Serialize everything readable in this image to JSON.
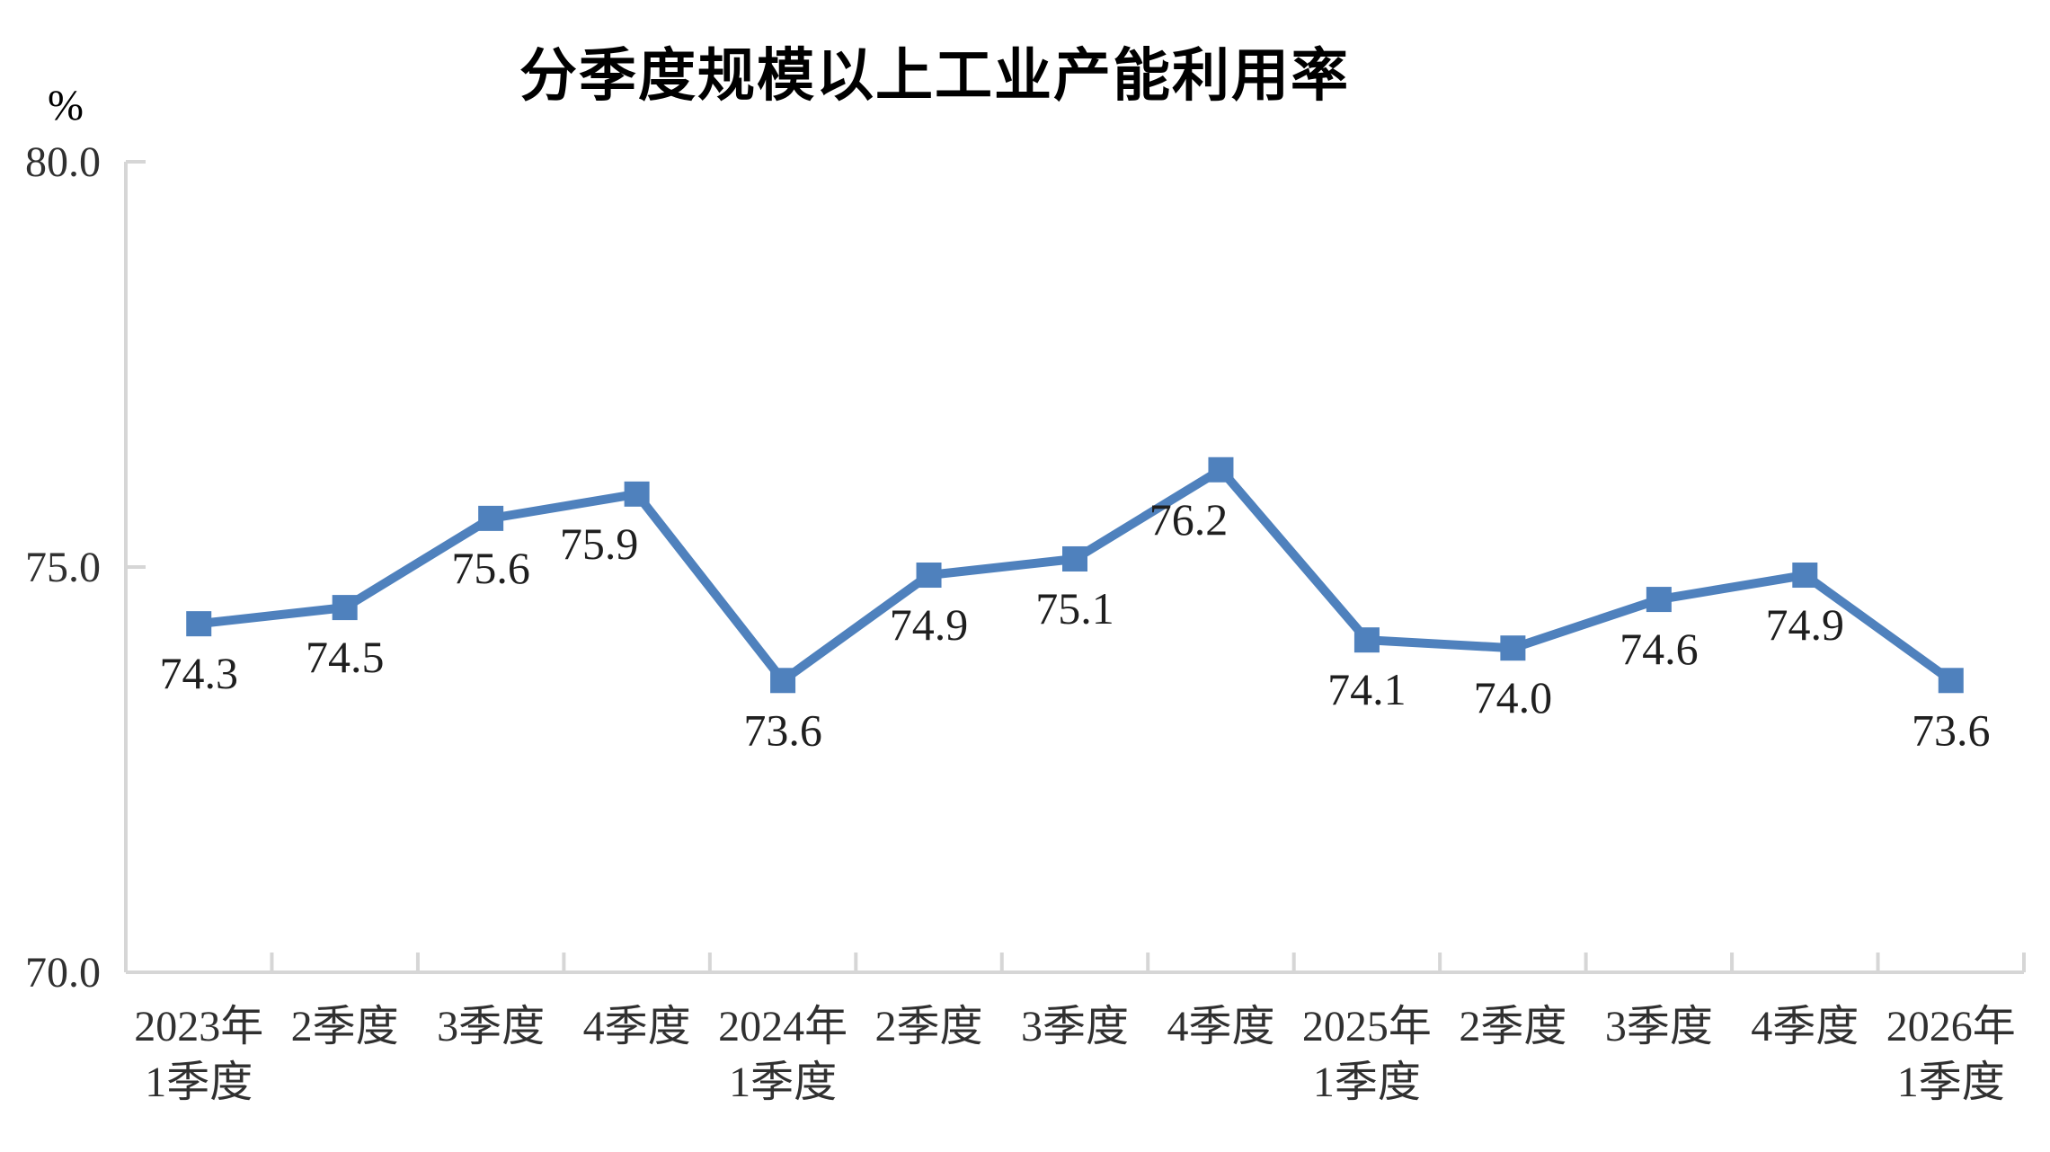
{
  "chart_data": {
    "type": "line",
    "title": "分季度规模以上工业产能利用率",
    "unit_label": "%",
    "categories": [
      "2023年\n1季度",
      "2季度",
      "3季度",
      "4季度",
      "2024年\n1季度",
      "2季度",
      "3季度",
      "4季度",
      "2025年\n1季度",
      "2季度",
      "3季度",
      "4季度",
      "2026年\n1季度"
    ],
    "values": [
      74.3,
      74.5,
      75.6,
      75.9,
      73.6,
      74.9,
      75.1,
      76.2,
      74.1,
      74.0,
      74.6,
      74.9,
      73.6
    ],
    "ylim": [
      70.0,
      80.0
    ],
    "yticks": [
      80.0,
      75.0,
      70.0
    ],
    "ytick_labels": [
      "80.0",
      "75.0",
      "70.0"
    ],
    "xlabel": "",
    "ylabel": "%",
    "grid": false,
    "legend": "none",
    "marker": "square",
    "colors": {
      "line": "#4F81BD",
      "marker": "#4F81BD",
      "axis": "#D6D6D6",
      "title_text": "#4A4A4A",
      "axis_text": "#303030",
      "data_label_text": "#1F1F1F"
    }
  }
}
